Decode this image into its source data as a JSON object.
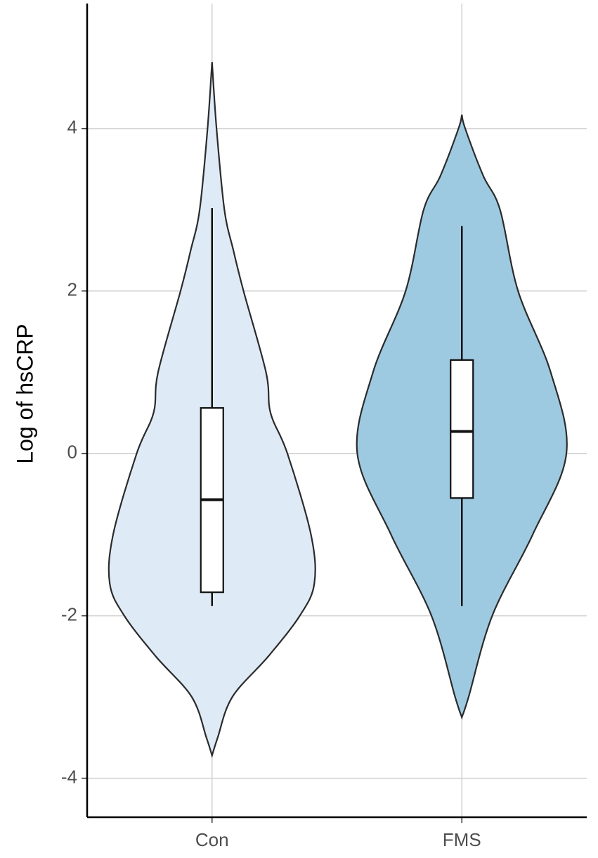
{
  "chart_data": {
    "type": "violin",
    "y_label": "Log of hsCRP",
    "categories": [
      "Con",
      "FMS"
    ],
    "groups": [
      {
        "color": "#deebf7",
        "box": {
          "whisker_low": -1.88,
          "q1": -1.71,
          "median": -0.57,
          "q3": 0.56,
          "whisker_high": 3.02
        },
        "violin": {
          "y": [
            4.82,
            4.0,
            3.0,
            2.5,
            2.0,
            1.0,
            0.5,
            0,
            -1,
            -1.6,
            -2,
            -2.5,
            -3,
            -3.5,
            -3.72
          ],
          "width": [
            0,
            0.04,
            0.11,
            0.19,
            0.28,
            0.48,
            0.52,
            0.67,
            0.88,
            0.91,
            0.78,
            0.5,
            0.18,
            0.05,
            0
          ]
        }
      },
      {
        "color": "#9ecae1",
        "box": {
          "whisker_low": -1.88,
          "q1": -0.55,
          "median": 0.27,
          "q3": 1.15,
          "whisker_high": 2.8
        },
        "violin": {
          "y": [
            4.17,
            4.0,
            3.42,
            3.0,
            2.0,
            1.0,
            0,
            -1,
            -2,
            -3,
            -3.25
          ],
          "width": [
            0,
            0.03,
            0.19,
            0.34,
            0.5,
            0.79,
            0.93,
            0.63,
            0.27,
            0.06,
            0
          ]
        }
      }
    ],
    "ylim": [
      -4.48,
      5.54
    ],
    "yticks": [
      -4,
      -2,
      0,
      2,
      4
    ],
    "grid": true
  }
}
